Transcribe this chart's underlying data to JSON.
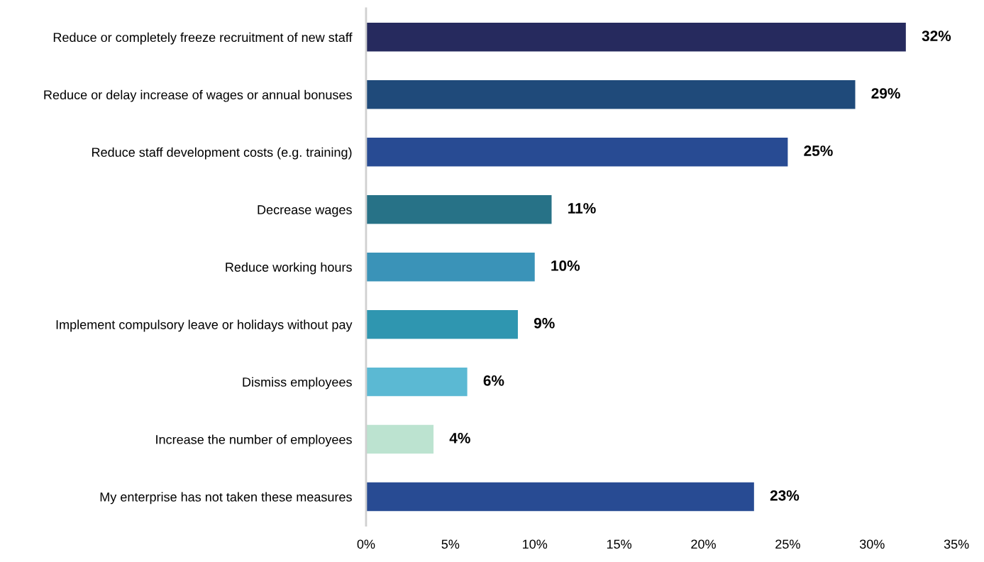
{
  "chart_data": {
    "type": "bar",
    "orientation": "horizontal",
    "categories": [
      "Reduce or completely freeze recruitment of new staff",
      "Reduce or delay increase of wages or annual bonuses",
      "Reduce staff development costs (e.g. training)",
      "Decrease wages",
      "Reduce working hours",
      "Implement compulsory leave or holidays without pay",
      "Dismiss employees",
      "Increase the number of employees",
      "My enterprise has not taken these measures"
    ],
    "values": [
      32,
      29,
      25,
      11,
      10,
      9,
      6,
      4,
      23
    ],
    "colors": [
      "#262a5e",
      "#1f4a7a",
      "#284b93",
      "#277287",
      "#3a93b8",
      "#2f96b0",
      "#5bb9d3",
      "#bce3d0",
      "#284b93"
    ],
    "value_labels": [
      "32%",
      "29%",
      "25%",
      "11%",
      "10%",
      "9%",
      "6%",
      "4%",
      "23%"
    ],
    "xlim": [
      0,
      35
    ],
    "xticks": [
      {
        "value": 0,
        "label": "0%"
      },
      {
        "value": 5,
        "label": "5%"
      },
      {
        "value": 10,
        "label": "10%"
      },
      {
        "value": 15,
        "label": "15%"
      },
      {
        "value": 20,
        "label": "20%"
      },
      {
        "value": 25,
        "label": "25%"
      },
      {
        "value": 30,
        "label": "30%"
      },
      {
        "value": 35,
        "label": "35%"
      }
    ],
    "grid": false,
    "legend": false
  }
}
